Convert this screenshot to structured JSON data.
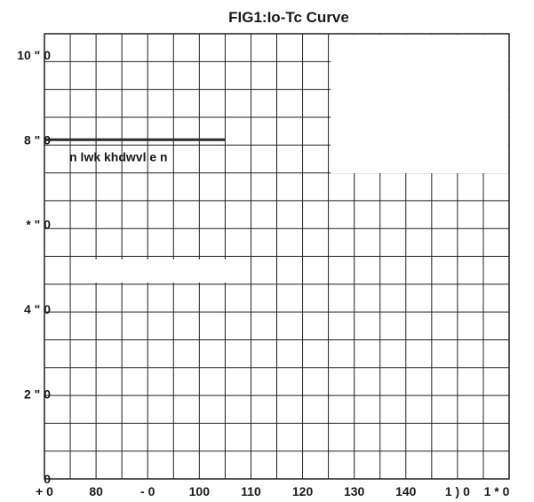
{
  "chart_data": {
    "type": "line",
    "title": "FIG1:Io-Tc Curve",
    "xlabel": "",
    "ylabel": "",
    "x_tick_labels": [
      "+ 0",
      "80",
      "- 0",
      "100",
      "110",
      "120",
      "130",
      "140",
      "1 ) 0",
      "1 * 0"
    ],
    "y_tick_labels": [
      "0",
      "2 \" 0",
      "4 \" 0",
      "* \" 0",
      "8 \" 0",
      "10 \" 0"
    ],
    "xlim": [
      70,
      160
    ],
    "ylim": [
      0,
      105
    ],
    "grid": true,
    "series": [
      {
        "x": [
          70,
          105
        ],
        "y": [
          80,
          80
        ]
      }
    ],
    "annotations": [
      {
        "text": "n lwk khdwvl e n",
        "x": 80,
        "y": 76
      }
    ]
  }
}
